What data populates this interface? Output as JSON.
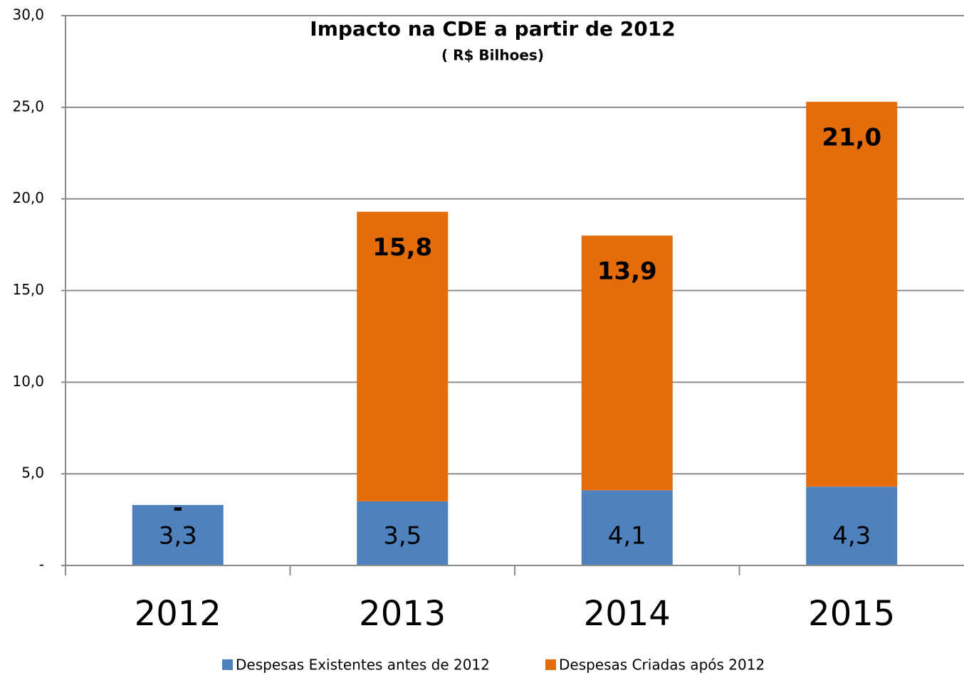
{
  "chart_data": {
    "type": "bar",
    "stacked": true,
    "title": "Impacto na CDE a partir de 2012",
    "subtitle": "( R$ Bilhoes)",
    "categories": [
      "2012",
      "2013",
      "2014",
      "2015"
    ],
    "series": [
      {
        "name": "Despesas Existentes antes de 2012",
        "color": "#4f81bd",
        "values": [
          3.3,
          3.5,
          4.1,
          4.3
        ],
        "value_labels": [
          "3,3",
          "3,5",
          "4,1",
          "4,3"
        ]
      },
      {
        "name": "Despesas Criadas após 2012",
        "color": "#e46c0a",
        "values": [
          0,
          15.8,
          13.9,
          21.0
        ],
        "value_labels": [
          "-",
          "15,8",
          "13,9",
          "21,0"
        ]
      }
    ],
    "ylim": [
      0,
      30
    ],
    "yticks": [
      {
        "value": 0,
        "label": "-"
      },
      {
        "value": 5,
        "label": "5,0"
      },
      {
        "value": 10,
        "label": "10,0"
      },
      {
        "value": 15,
        "label": "15,0"
      },
      {
        "value": 20,
        "label": "20,0"
      },
      {
        "value": 25,
        "label": "25,0"
      },
      {
        "value": 30,
        "label": "30,0"
      }
    ],
    "grid": true,
    "legend": "bottom"
  }
}
